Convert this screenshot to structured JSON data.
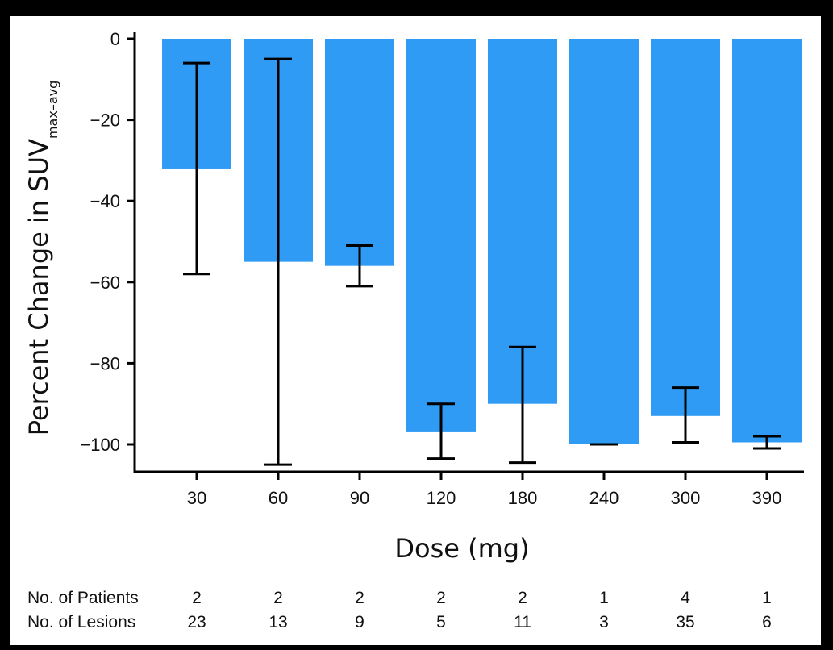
{
  "chart_data": {
    "type": "bar",
    "categories": [
      "30",
      "60",
      "90",
      "120",
      "180",
      "240",
      "300",
      "390"
    ],
    "values": [
      -32,
      -55,
      -56,
      -97,
      -90,
      -100,
      -93,
      -99.5
    ],
    "error_bars": [
      {
        "low": -58,
        "high": -6
      },
      {
        "low": -105,
        "high": -5
      },
      {
        "low": -61,
        "high": -51
      },
      {
        "low": -103.5,
        "high": -90
      },
      {
        "low": -104.5,
        "high": -76
      },
      {
        "low": -100,
        "high": -100
      },
      {
        "low": -99.5,
        "high": -86
      },
      {
        "low": -101,
        "high": -98
      }
    ],
    "xlabel": "Dose (mg)",
    "ylabel": "Percent Change in SUV",
    "ylabel_subscript": "max–avg",
    "yticks": [
      0,
      -20,
      -40,
      -60,
      -80,
      -100
    ],
    "ytick_labels": [
      "0",
      "−20",
      "−40",
      "−60",
      "−80",
      "−100"
    ],
    "ylim": [
      -107,
      0
    ],
    "grid": false,
    "bar_color": "#2f9bf5",
    "error_color": "#000000",
    "table": [
      {
        "label": "No. of Patients",
        "values": [
          "2",
          "2",
          "2",
          "2",
          "2",
          "1",
          "4",
          "1"
        ]
      },
      {
        "label": "No. of Lesions",
        "values": [
          "23",
          "13",
          "9",
          "5",
          "11",
          "3",
          "35",
          "6"
        ]
      }
    ]
  }
}
